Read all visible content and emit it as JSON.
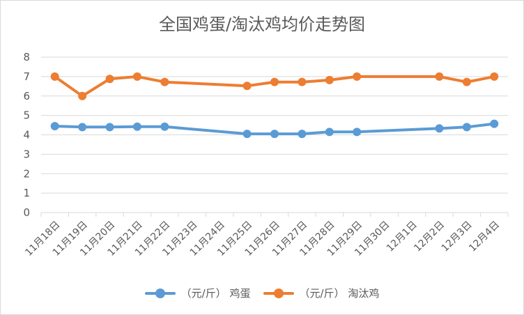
{
  "chart_data": {
    "type": "line",
    "title": "全国鸡蛋/淘汰鸡均价走势图",
    "categories": [
      "11月18日",
      "11月19日",
      "11月20日",
      "11月21日",
      "11月22日",
      "11月23日",
      "11月24日",
      "11月25日",
      "11月26日",
      "11月27日",
      "11月28日",
      "11月29日",
      "11月30日",
      "12月1日",
      "12月2日",
      "12月3日",
      "12月4日"
    ],
    "ylim": [
      0,
      8
    ],
    "yticks": [
      0,
      1,
      2,
      3,
      4,
      5,
      6,
      7,
      8
    ],
    "grid": true,
    "legend_position": "bottom",
    "series": [
      {
        "name": "（元/斤） 鸡蛋",
        "color": "#5b9bd5",
        "values": [
          4.45,
          4.4,
          4.4,
          4.42,
          4.42,
          null,
          null,
          4.05,
          4.05,
          4.05,
          4.15,
          4.15,
          null,
          null,
          4.33,
          4.4,
          4.57
        ]
      },
      {
        "name": "（元/斤） 淘汰鸡",
        "color": "#ed7d31",
        "values": [
          7.0,
          6.0,
          6.88,
          7.0,
          6.72,
          null,
          null,
          6.52,
          6.72,
          6.72,
          6.82,
          7.0,
          null,
          null,
          7.0,
          6.72,
          7.0
        ]
      }
    ]
  }
}
